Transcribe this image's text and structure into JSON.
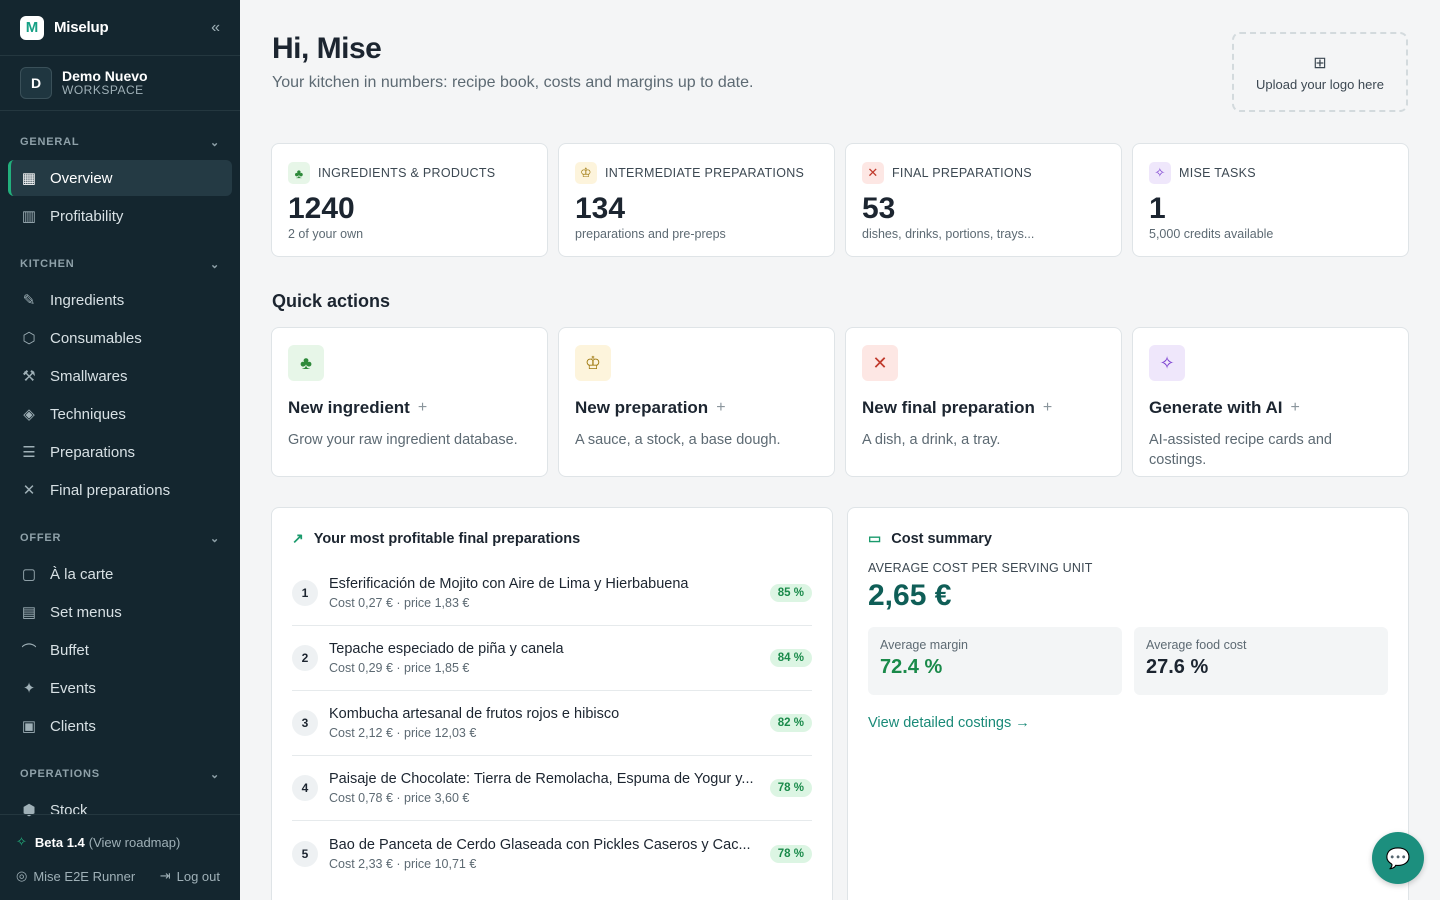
{
  "brand": {
    "name": "Miselup",
    "logo_letter": "M",
    "collapse_icon": "«"
  },
  "workspace": {
    "avatar": "D",
    "name": "Demo Nuevo",
    "label": "WORKSPACE"
  },
  "nav": {
    "general_label": "GENERAL",
    "general": [
      {
        "label": "Overview",
        "icon": "▦"
      },
      {
        "label": "Profitability",
        "icon": "▥"
      }
    ],
    "kitchen_label": "KITCHEN",
    "kitchen": [
      {
        "label": "Ingredients",
        "icon": "✎"
      },
      {
        "label": "Consumables",
        "icon": "⬡"
      },
      {
        "label": "Smallwares",
        "icon": "⚒"
      },
      {
        "label": "Techniques",
        "icon": "◈"
      },
      {
        "label": "Preparations",
        "icon": "☰"
      },
      {
        "label": "Final preparations",
        "icon": "✕"
      }
    ],
    "offer_label": "OFFER",
    "offer": [
      {
        "label": "À la carte",
        "icon": "▢"
      },
      {
        "label": "Set menus",
        "icon": "▤"
      },
      {
        "label": "Buffet",
        "icon": "⌒"
      },
      {
        "label": "Events",
        "icon": "✦"
      },
      {
        "label": "Clients",
        "icon": "▣"
      }
    ],
    "operations_label": "OPERATIONS",
    "operations": [
      {
        "label": "Stock",
        "icon": "⬢"
      }
    ]
  },
  "footer": {
    "beta": "Beta 1.4",
    "roadmap": "(View roadmap)",
    "user": "Mise E2E Runner",
    "logout": "Log out"
  },
  "header": {
    "greeting": "Hi, Mise",
    "subtitle": "Your kitchen in numbers: recipe book, costs and margins up to date.",
    "upload": "Upload your logo here"
  },
  "stats": [
    {
      "label": "INGREDIENTS & PRODUCTS",
      "value": "1240",
      "sub": "2 of your own",
      "icon": "♣",
      "color": "green"
    },
    {
      "label": "INTERMEDIATE PREPARATIONS",
      "value": "134",
      "sub": "preparations and pre-preps",
      "icon": "♔",
      "color": "yellow"
    },
    {
      "label": "FINAL PREPARATIONS",
      "value": "53",
      "sub": "dishes, drinks, portions, trays...",
      "icon": "✕",
      "color": "red"
    },
    {
      "label": "MISE TASKS",
      "value": "1",
      "sub": "5,000 credits available",
      "icon": "✧",
      "color": "purple"
    }
  ],
  "quick_actions": {
    "title": "Quick actions",
    "items": [
      {
        "label": "New ingredient",
        "desc": "Grow your raw ingredient database.",
        "icon": "♣",
        "color": "green"
      },
      {
        "label": "New preparation",
        "desc": "A sauce, a stock, a base dough.",
        "icon": "♔",
        "color": "yellow"
      },
      {
        "label": "New final preparation",
        "desc": "A dish, a drink, a tray.",
        "icon": "✕",
        "color": "red"
      },
      {
        "label": "Generate with AI",
        "desc": "AI-assisted recipe cards and costings.",
        "icon": "✧",
        "color": "purple"
      }
    ],
    "plus": "+"
  },
  "profitable": {
    "title": "Your most profitable final preparations",
    "items": [
      {
        "rank": "1",
        "name": "Esferificación de Mojito con Aire de Lima y Hierbabuena",
        "cost": "Cost 0,27 € · price 1,83 €",
        "margin": "85 %"
      },
      {
        "rank": "2",
        "name": "Tepache especiado de piña y canela",
        "cost": "Cost 0,29 € · price 1,85 €",
        "margin": "84 %"
      },
      {
        "rank": "3",
        "name": "Kombucha artesanal de frutos rojos e hibisco",
        "cost": "Cost 2,12 € · price 12,03 €",
        "margin": "82 %"
      },
      {
        "rank": "4",
        "name": "Paisaje de Chocolate: Tierra de Remolacha, Espuma de Yogur y...",
        "cost": "Cost 0,78 € · price 3,60 €",
        "margin": "78 %"
      },
      {
        "rank": "5",
        "name": "Bao de Panceta de Cerdo Glaseada con Pickles Caseros y Cac...",
        "cost": "Cost 2,33 € · price 10,71 €",
        "margin": "78 %"
      }
    ]
  },
  "cost_summary": {
    "title": "Cost summary",
    "avg_label": "AVERAGE COST PER SERVING UNIT",
    "avg_value": "2,65 €",
    "margin_label": "Average margin",
    "margin_value": "72.4 %",
    "food_cost_label": "Average food cost",
    "food_cost_value": "27.6 %",
    "link": "View detailed costings →"
  },
  "colors": {
    "sidebar": "#14262f",
    "accent": "#22b07d",
    "teal": "#1c8f7e"
  }
}
